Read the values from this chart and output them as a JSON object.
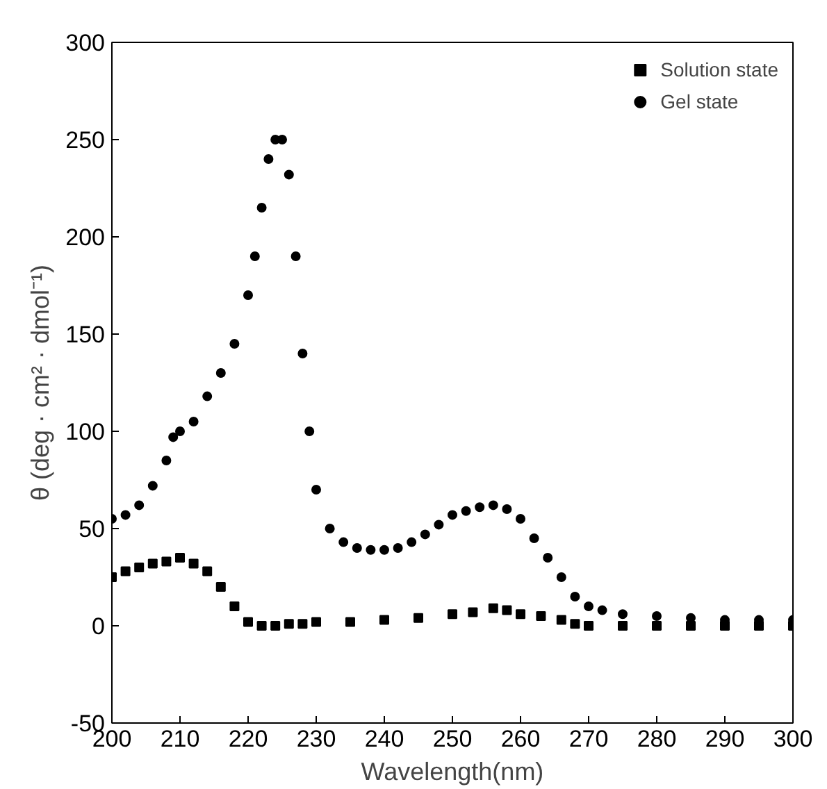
{
  "chart_data": {
    "type": "scatter",
    "xlabel": "Wavelength(nm)",
    "ylabel": "θ (deg · cm² · dmol⁻¹)",
    "xlim": [
      200,
      300
    ],
    "ylim": [
      -50,
      300
    ],
    "xticks": [
      200,
      210,
      220,
      230,
      240,
      250,
      260,
      270,
      280,
      290,
      300
    ],
    "yticks": [
      -50,
      0,
      50,
      100,
      150,
      200,
      250,
      300
    ],
    "grid": false,
    "legend": "top right",
    "series": [
      {
        "name": "Solution state",
        "color": "#000000",
        "marker": "square",
        "x": [
          200,
          202,
          204,
          206,
          208,
          210,
          212,
          214,
          216,
          218,
          220,
          222,
          224,
          226,
          228,
          230,
          235,
          240,
          245,
          250,
          253,
          256,
          258,
          260,
          263,
          266,
          268,
          270,
          275,
          280,
          285,
          290,
          295,
          300
        ],
        "values": [
          25,
          28,
          30,
          32,
          33,
          35,
          32,
          28,
          20,
          10,
          2,
          0,
          0,
          1,
          1,
          2,
          2,
          3,
          4,
          6,
          7,
          9,
          8,
          6,
          5,
          3,
          1,
          0,
          0,
          0,
          0,
          0,
          0,
          0
        ]
      },
      {
        "name": "Gel state",
        "color": "#000000",
        "marker": "circle",
        "x": [
          200,
          202,
          204,
          206,
          208,
          209,
          210,
          212,
          214,
          216,
          218,
          220,
          221,
          222,
          223,
          224,
          225,
          226,
          227,
          228,
          229,
          230,
          232,
          234,
          236,
          238,
          240,
          242,
          244,
          246,
          248,
          250,
          252,
          254,
          256,
          258,
          260,
          262,
          264,
          266,
          268,
          270,
          272,
          275,
          280,
          285,
          290,
          295,
          300
        ],
        "values": [
          55,
          57,
          62,
          72,
          85,
          97,
          100,
          105,
          118,
          130,
          145,
          170,
          190,
          215,
          240,
          250,
          250,
          232,
          190,
          140,
          100,
          70,
          50,
          43,
          40,
          39,
          39,
          40,
          43,
          47,
          52,
          57,
          59,
          61,
          62,
          60,
          55,
          45,
          35,
          25,
          15,
          10,
          8,
          6,
          5,
          4,
          3,
          3,
          3
        ]
      }
    ]
  }
}
